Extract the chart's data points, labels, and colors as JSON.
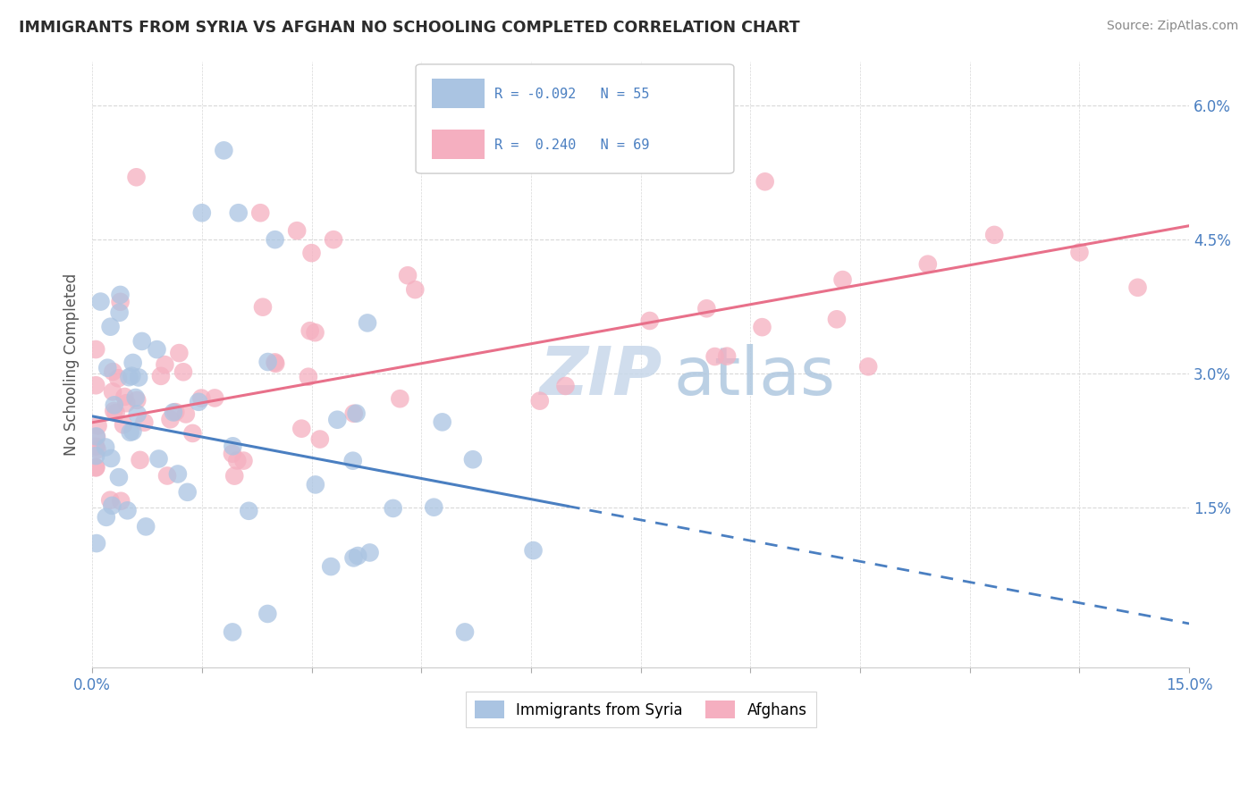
{
  "title": "IMMIGRANTS FROM SYRIA VS AFGHAN NO SCHOOLING COMPLETED CORRELATION CHART",
  "source": "Source: ZipAtlas.com",
  "ylabel": "No Schooling Completed",
  "xmin": 0.0,
  "xmax": 15.0,
  "ymin": -0.3,
  "ymax": 6.5,
  "yticks": [
    1.5,
    3.0,
    4.5,
    6.0
  ],
  "ytick_labels": [
    "1.5%",
    "3.0%",
    "4.5%",
    "6.0%"
  ],
  "xticks": [
    0.0,
    1.5,
    3.0,
    4.5,
    6.0,
    7.5,
    9.0,
    10.5,
    12.0,
    13.5,
    15.0
  ],
  "color_syria": "#aac4e2",
  "color_afghan": "#f5afc0",
  "line_color_syria": "#4a7fc1",
  "line_color_afghan": "#e8708a",
  "syria_slope": -0.155,
  "syria_intercept": 2.52,
  "afghan_slope": 0.147,
  "afghan_intercept": 2.45,
  "syria_solid_end": 6.5,
  "background_color": "#ffffff",
  "grid_color": "#d8d8d8",
  "tick_color": "#4a7fc1",
  "watermark_color": "#c8d8ea",
  "watermark_text": "ZIPatlas"
}
